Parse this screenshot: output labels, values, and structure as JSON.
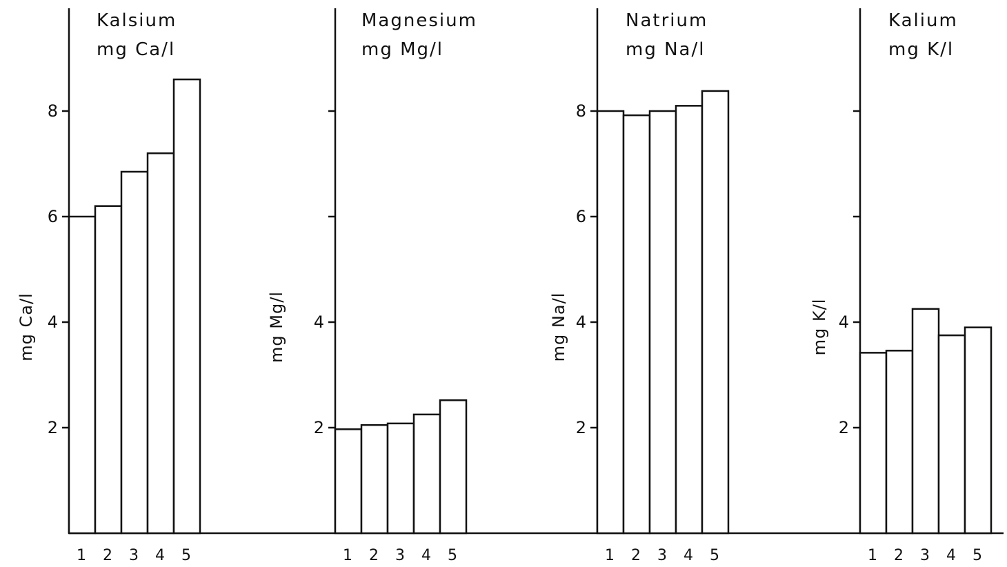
{
  "chart_data": [
    {
      "type": "bar",
      "title": "Kalsium",
      "subtitle": "mg Ca/l",
      "ylabel": "mg Ca/l",
      "categories": [
        "1",
        "2",
        "3",
        "4",
        "5"
      ],
      "values": [
        6.0,
        6.2,
        6.85,
        7.2,
        8.6
      ],
      "yticks": [
        "2",
        "4",
        "6",
        "8"
      ],
      "ylim": [
        0,
        10
      ],
      "grid": false,
      "colors": {
        "bar_fill": "#ffffff",
        "stroke": "#111111"
      }
    },
    {
      "type": "bar",
      "title": "Magnesium",
      "subtitle": "mg Mg/l",
      "ylabel": "mg Mg/l",
      "categories": [
        "1",
        "2",
        "3",
        "4",
        "5"
      ],
      "values": [
        1.97,
        2.05,
        2.08,
        2.25,
        2.52
      ],
      "yticks": [
        "2",
        "4",
        "",
        ""
      ],
      "ylim": [
        0,
        10
      ],
      "grid": false,
      "colors": {
        "bar_fill": "#ffffff",
        "stroke": "#111111"
      }
    },
    {
      "type": "bar",
      "title": "Natrium",
      "subtitle": "mg Na/l",
      "ylabel": "mg Na/l",
      "categories": [
        "1",
        "2",
        "3",
        "4",
        "5"
      ],
      "values": [
        8.0,
        7.92,
        8.0,
        8.1,
        8.38
      ],
      "yticks": [
        "2",
        "4",
        "6",
        "8"
      ],
      "ylim": [
        0,
        10
      ],
      "grid": false,
      "colors": {
        "bar_fill": "#ffffff",
        "stroke": "#111111"
      }
    },
    {
      "type": "bar",
      "title": "Kalium",
      "subtitle": "mg K/l",
      "ylabel": "mg K/l",
      "categories": [
        "1",
        "2",
        "3",
        "4",
        "5"
      ],
      "values": [
        3.42,
        3.46,
        4.25,
        3.75,
        3.9
      ],
      "yticks": [
        "2",
        "4",
        "",
        ""
      ],
      "ylim": [
        0,
        10
      ],
      "grid": false,
      "colors": {
        "bar_fill": "#ffffff",
        "stroke": "#111111"
      }
    }
  ]
}
